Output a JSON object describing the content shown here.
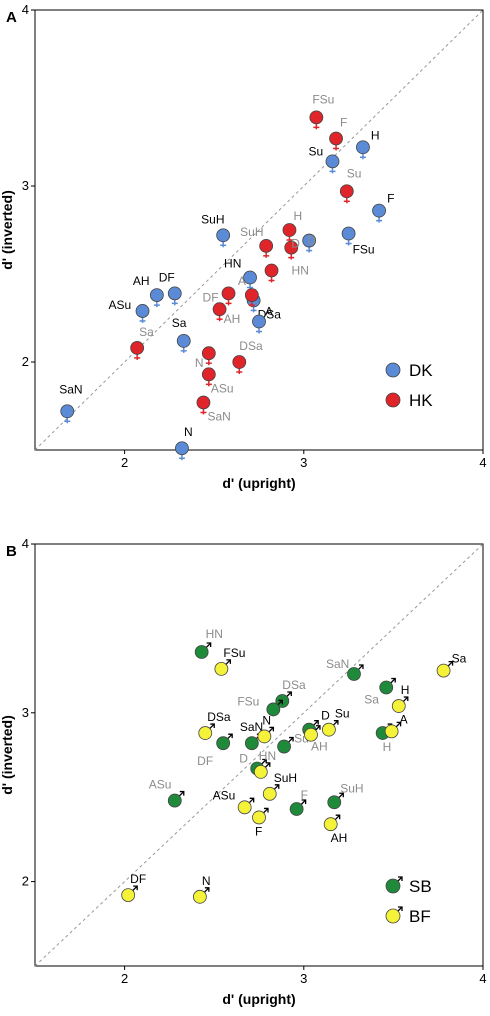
{
  "colors": {
    "DK": "#5b8bd6",
    "HK": "#e0252a",
    "SB": "#1f8a3a",
    "BF": "#f5f23a",
    "label_dark": "#000000",
    "label_grey": "#8c8c8c",
    "diag": "#999999"
  },
  "chart_data": [
    {
      "type": "scatter",
      "panel_label": "A",
      "xlabel": "d' (upright)",
      "ylabel": "d' (inverted)",
      "xlim": [
        1.5,
        4
      ],
      "ylim": [
        1.5,
        4
      ],
      "xticks": [
        "2",
        "3",
        "4"
      ],
      "yticks": [
        "2",
        "3",
        "4"
      ],
      "diagonal": true,
      "grid": false,
      "legend_position": "bottom-right",
      "marker_symbol": "♀",
      "series": [
        {
          "name": "DK",
          "color_key": "DK",
          "points": [
            {
              "label": "H",
              "x": 3.33,
              "y": 3.22
            },
            {
              "label": "Su",
              "x": 3.16,
              "y": 3.14
            },
            {
              "label": "F",
              "x": 3.42,
              "y": 2.86
            },
            {
              "label": "FSu",
              "x": 3.25,
              "y": 2.73
            },
            {
              "label": "SuH",
              "x": 2.55,
              "y": 2.72
            },
            {
              "label": "D",
              "x": 3.03,
              "y": 2.69
            },
            {
              "label": "HN",
              "x": 2.7,
              "y": 2.48
            },
            {
              "label": "DF",
              "x": 2.28,
              "y": 2.39
            },
            {
              "label": "AH",
              "x": 2.18,
              "y": 2.38
            },
            {
              "label": "DSa",
              "x": 2.72,
              "y": 2.35
            },
            {
              "label": "ASu",
              "x": 2.1,
              "y": 2.29
            },
            {
              "label": "A",
              "x": 2.75,
              "y": 2.23
            },
            {
              "label": "Sa",
              "x": 2.33,
              "y": 2.12
            },
            {
              "label": "SaN",
              "x": 1.68,
              "y": 1.72
            },
            {
              "label": "N",
              "x": 2.32,
              "y": 1.51
            }
          ]
        },
        {
          "name": "HK",
          "color_key": "HK",
          "points": [
            {
              "label": "FSu",
              "x": 3.07,
              "y": 3.39
            },
            {
              "label": "F",
              "x": 3.18,
              "y": 3.27
            },
            {
              "label": "Su",
              "x": 3.24,
              "y": 2.97
            },
            {
              "label": "H",
              "x": 2.92,
              "y": 2.75
            },
            {
              "label": "SuH",
              "x": 2.79,
              "y": 2.66
            },
            {
              "label": "D",
              "x": 2.93,
              "y": 2.65
            },
            {
              "label": "HN",
              "x": 2.82,
              "y": 2.52
            },
            {
              "label": "DF",
              "x": 2.58,
              "y": 2.39
            },
            {
              "label": "A",
              "x": 2.71,
              "y": 2.38
            },
            {
              "label": "AH",
              "x": 2.53,
              "y": 2.3
            },
            {
              "label": "Sa",
              "x": 2.07,
              "y": 2.08
            },
            {
              "label": "N",
              "x": 2.47,
              "y": 2.05
            },
            {
              "label": "DSa",
              "x": 2.64,
              "y": 2.0
            },
            {
              "label": "ASu",
              "x": 2.47,
              "y": 1.93
            },
            {
              "label": "SaN",
              "x": 2.44,
              "y": 1.77
            }
          ]
        }
      ]
    },
    {
      "type": "scatter",
      "panel_label": "B",
      "xlabel": "d' (upright)",
      "ylabel": "d' (inverted)",
      "xlim": [
        1.5,
        4
      ],
      "ylim": [
        1.5,
        4
      ],
      "xticks": [
        "2",
        "3",
        "4"
      ],
      "yticks": [
        "2",
        "3",
        "4"
      ],
      "diagonal": true,
      "grid": false,
      "legend_position": "bottom-right",
      "marker_symbol": "♂",
      "series": [
        {
          "name": "SB",
          "color_key": "SB",
          "points": [
            {
              "label": "HN",
              "x": 2.43,
              "y": 3.36
            },
            {
              "label": "SaN",
              "x": 3.28,
              "y": 3.23
            },
            {
              "label": "Sa",
              "x": 3.46,
              "y": 3.15
            },
            {
              "label": "DSa",
              "x": 2.88,
              "y": 3.07
            },
            {
              "label": "FSu",
              "x": 2.83,
              "y": 3.02
            },
            {
              "label": "D",
              "x": 3.03,
              "y": 2.9
            },
            {
              "label": "H",
              "x": 3.44,
              "y": 2.88
            },
            {
              "label": "DF",
              "x": 2.55,
              "y": 2.82
            },
            {
              "label": "SaN",
              "x": 2.71,
              "y": 2.82
            },
            {
              "label": "Su",
              "x": 2.89,
              "y": 2.8
            },
            {
              "label": "D",
              "x": 2.74,
              "y": 2.67
            },
            {
              "label": "ASu",
              "x": 2.28,
              "y": 2.48
            },
            {
              "label": "F",
              "x": 2.96,
              "y": 2.43
            },
            {
              "label": "SuH",
              "x": 3.17,
              "y": 2.47
            }
          ]
        },
        {
          "name": "BF",
          "color_key": "BF",
          "points": [
            {
              "label": "FSu",
              "x": 2.54,
              "y": 3.26
            },
            {
              "label": "Sa",
              "x": 3.78,
              "y": 3.25
            },
            {
              "label": "H",
              "x": 3.53,
              "y": 3.04
            },
            {
              "label": "DSa",
              "x": 2.45,
              "y": 2.88
            },
            {
              "label": "A",
              "x": 3.49,
              "y": 2.89
            },
            {
              "label": "Su",
              "x": 3.14,
              "y": 2.9
            },
            {
              "label": "AH",
              "x": 3.04,
              "y": 2.87
            },
            {
              "label": "N",
              "x": 2.78,
              "y": 2.86
            },
            {
              "label": "HN",
              "x": 2.76,
              "y": 2.65
            },
            {
              "label": "SuH",
              "x": 2.81,
              "y": 2.52
            },
            {
              "label": "ASu",
              "x": 2.67,
              "y": 2.44
            },
            {
              "label": "F",
              "x": 2.75,
              "y": 2.38
            },
            {
              "label": "AH",
              "x": 3.15,
              "y": 2.34
            },
            {
              "label": "DF",
              "x": 2.02,
              "y": 1.92
            },
            {
              "label": "N",
              "x": 2.42,
              "y": 1.91
            }
          ]
        }
      ]
    }
  ]
}
